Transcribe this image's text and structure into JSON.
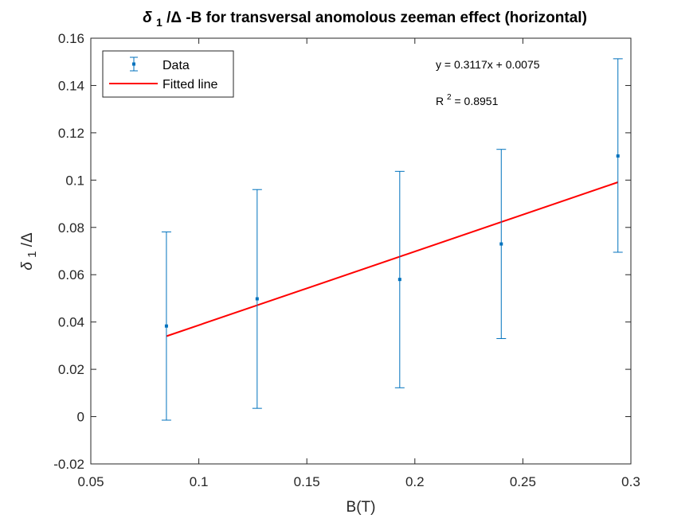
{
  "chart_data": {
    "type": "scatter",
    "title": {
      "main": "-B for transversal anomolous zeeman effect (horizontal)",
      "delta_symbol": "δ",
      "delta_subscript": "1",
      "slash_Delta": "/Δ"
    },
    "xlabel": "B(T)",
    "ylabel": {
      "delta_symbol": "δ",
      "delta_subscript": "1",
      "rest": "/Δ"
    },
    "xlim": [
      0.05,
      0.3
    ],
    "ylim": [
      -0.02,
      0.16
    ],
    "xticks": [
      0.05,
      0.1,
      0.15,
      0.2,
      0.25,
      0.3
    ],
    "xtick_labels": [
      "0.05",
      "0.1",
      "0.15",
      "0.2",
      "0.25",
      "0.3"
    ],
    "yticks": [
      -0.02,
      0,
      0.02,
      0.04,
      0.06,
      0.08,
      0.1,
      0.12,
      0.14,
      0.16
    ],
    "ytick_labels": [
      "-0.02",
      "0",
      "0.02",
      "0.04",
      "0.06",
      "0.08",
      "0.1",
      "0.12",
      "0.14",
      "0.16"
    ],
    "grid": false,
    "legend_placement": "top-left",
    "series": [
      {
        "name": "Data",
        "kind": "errorbar",
        "color": "#0072BD",
        "x": [
          0.085,
          0.127,
          0.193,
          0.24,
          0.294
        ],
        "y": [
          0.0383,
          0.0498,
          0.058,
          0.073,
          0.1102
        ],
        "y_low": [
          -0.0015,
          0.0035,
          0.0122,
          0.033,
          0.0695
        ],
        "y_high": [
          0.0781,
          0.096,
          0.1037,
          0.113,
          0.1513
        ]
      },
      {
        "name": "Fitted line",
        "kind": "line",
        "color": "#FF0000",
        "x": [
          0.085,
          0.294
        ],
        "y": [
          0.034,
          0.0991
        ]
      }
    ],
    "annotations": {
      "equation": "y = 0.3117x + 0.0075",
      "r2_prefix": "R",
      "r2_superscript": "2",
      "r2_value": " = 0.8951"
    }
  }
}
